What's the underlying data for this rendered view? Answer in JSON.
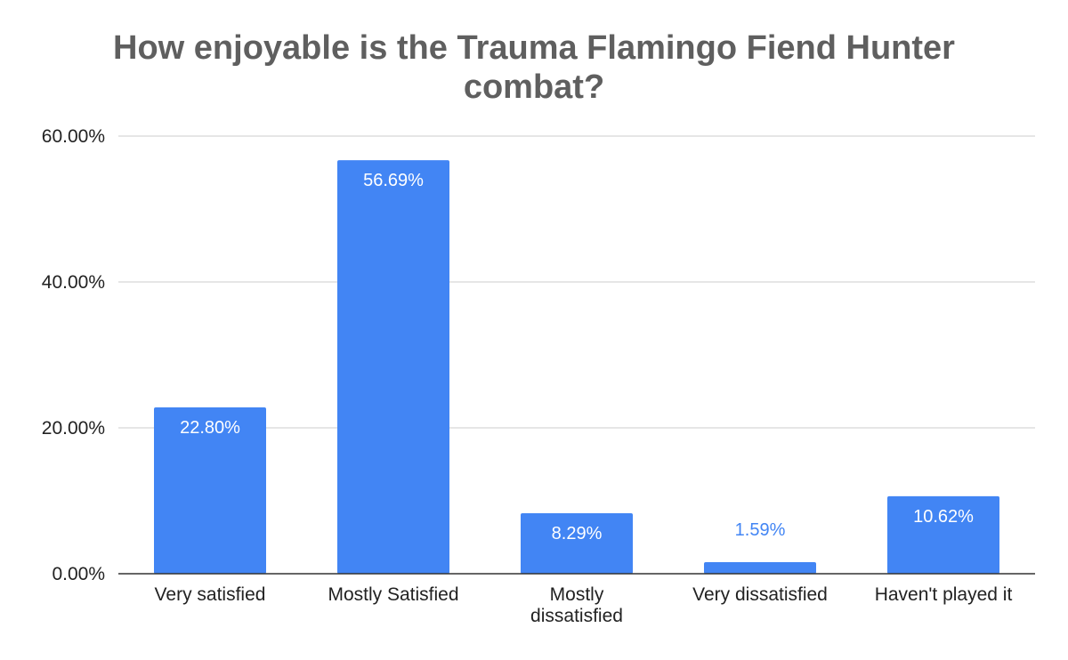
{
  "chart_data": {
    "type": "bar",
    "title": "How enjoyable is the Trauma Flamingo Fiend Hunter combat?",
    "title_lines": [
      "How enjoyable is the Trauma Flamingo Fiend Hunter",
      "combat?"
    ],
    "categories": [
      "Very satisfied",
      "Mostly Satisfied",
      "Mostly dissatisfied",
      "Very dissatisfied",
      "Haven't played it"
    ],
    "category_lines": [
      [
        "Very satisfied"
      ],
      [
        "Mostly Satisfied"
      ],
      [
        "Mostly",
        "dissatisfied"
      ],
      [
        "Very dissatisfied"
      ],
      [
        "Haven't played it"
      ]
    ],
    "values": [
      22.8,
      56.69,
      8.29,
      1.59,
      10.62
    ],
    "data_labels": [
      "22.80%",
      "56.69%",
      "8.29%",
      "1.59%",
      "10.62%"
    ],
    "xlabel": "",
    "ylabel": "",
    "ylim": [
      0,
      60
    ],
    "yticks": [
      0,
      20,
      40,
      60
    ],
    "ytick_labels": [
      "0.00%",
      "20.00%",
      "40.00%",
      "60.00%"
    ],
    "grid": true,
    "legend": "none",
    "colors": {
      "bar": "#4285f4",
      "label_inside": "#ffffff",
      "label_outside": "#4285f4",
      "grid": "#cccccc",
      "axis": "#333333",
      "title": "#5f5f5f",
      "tick_text": "#222222"
    }
  }
}
